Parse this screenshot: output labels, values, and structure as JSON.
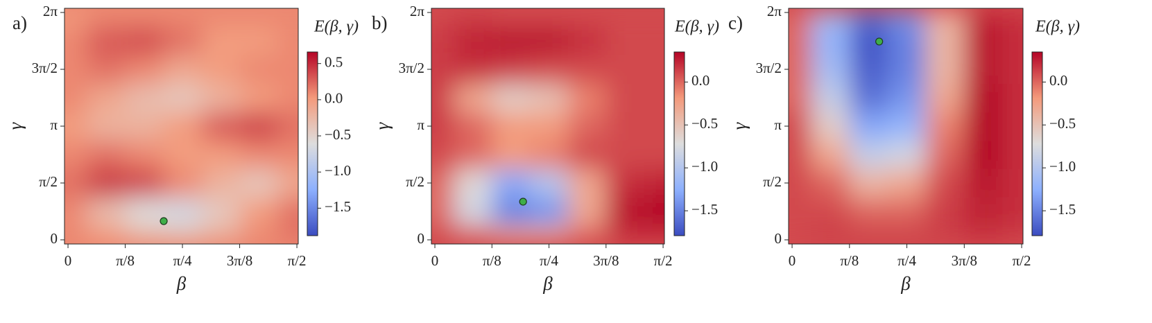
{
  "chart_data": [
    {
      "type": "heatmap",
      "panel_label": "a)",
      "xlabel": "β",
      "ylabel": "γ",
      "colorbar_label": "E(β, γ)",
      "xlim": [
        -0.024,
        1.58
      ],
      "ylim": [
        -0.115,
        6.398
      ],
      "xticks": [
        0,
        {
          "value": 0.3927,
          "label": "π/8"
        },
        {
          "value": 0.7854,
          "label": "π/4"
        },
        {
          "value": 1.1781,
          "label": "3π/8"
        },
        {
          "value": 1.5708,
          "label": "π/2"
        }
      ],
      "yticks": [
        0,
        {
          "value": 1.5708,
          "label": "π/2"
        },
        {
          "value": 3.1416,
          "label": "π"
        },
        {
          "value": 4.7124,
          "label": "3π/2"
        },
        {
          "value": 6.2832,
          "label": "2π"
        }
      ],
      "x": [
        0,
        0.262,
        0.524,
        0.785,
        1.047,
        1.309,
        1.571
      ],
      "y": [
        0,
        0.785,
        1.571,
        2.356,
        3.142,
        3.927,
        4.712,
        5.498,
        6.283
      ],
      "z": [
        [
          0.1,
          0.0,
          -0.3,
          -0.4,
          -0.2,
          0.1,
          0.2
        ],
        [
          0.1,
          -0.3,
          -0.6,
          -0.7,
          -0.4,
          0.0,
          0.2
        ],
        [
          0.2,
          0.45,
          0.4,
          0.1,
          -0.2,
          -0.4,
          -0.1
        ],
        [
          0.1,
          0.2,
          0.1,
          0.0,
          0.0,
          0.1,
          0.1
        ],
        [
          0.0,
          -0.2,
          -0.2,
          0.0,
          0.3,
          0.4,
          0.2
        ],
        [
          0.1,
          -0.1,
          -0.3,
          -0.4,
          -0.2,
          0.0,
          0.1
        ],
        [
          0.1,
          0.2,
          0.1,
          -0.1,
          0.0,
          0.1,
          0.1
        ],
        [
          0.1,
          0.3,
          0.35,
          0.2,
          0.0,
          0.0,
          0.1
        ],
        [
          0.0,
          0.1,
          0.1,
          0.1,
          0.1,
          0.1,
          0.1
        ]
      ],
      "vlim": [
        -1.88,
        0.66
      ],
      "cticks": [
        0.5,
        {
          "value": 0,
          "label": "0.0"
        },
        {
          "value": -0.5,
          "label": "−0.5"
        },
        {
          "value": -1,
          "label": "−1.0"
        },
        {
          "value": -1.5,
          "label": "−1.5"
        }
      ],
      "optimum": {
        "x": 0.657,
        "y": 0.517,
        "color": "#3fae49"
      }
    },
    {
      "type": "heatmap",
      "panel_label": "b)",
      "xlabel": "β",
      "ylabel": "γ",
      "colorbar_label": "E(β, γ)",
      "xlim": [
        -0.024,
        1.58
      ],
      "ylim": [
        -0.115,
        6.398
      ],
      "xticks": [
        0,
        {
          "value": 0.3927,
          "label": "π/8"
        },
        {
          "value": 0.7854,
          "label": "π/4"
        },
        {
          "value": 1.1781,
          "label": "3π/8"
        },
        {
          "value": 1.5708,
          "label": "π/2"
        }
      ],
      "yticks": [
        0,
        {
          "value": 1.5708,
          "label": "π/2"
        },
        {
          "value": 3.1416,
          "label": "π"
        },
        {
          "value": 4.7124,
          "label": "3π/2"
        },
        {
          "value": 6.2832,
          "label": "2π"
        }
      ],
      "x": [
        0,
        0.262,
        0.524,
        0.785,
        1.047,
        1.309,
        1.571
      ],
      "y": [
        0,
        0.785,
        1.571,
        2.356,
        3.142,
        3.927,
        4.712,
        5.498,
        6.283
      ],
      "z": [
        [
          0.1,
          0.0,
          -0.3,
          -0.3,
          0.0,
          0.2,
          0.2
        ],
        [
          0.0,
          -0.8,
          -1.5,
          -1.4,
          -0.3,
          0.3,
          0.35
        ],
        [
          0.0,
          -0.7,
          -1.3,
          -1.0,
          -0.3,
          0.2,
          0.25
        ],
        [
          0.1,
          0.0,
          -0.2,
          -0.1,
          0.1,
          0.1,
          0.1
        ],
        [
          0.15,
          0.0,
          -0.2,
          -0.2,
          0.0,
          0.1,
          0.1
        ],
        [
          0.15,
          -0.3,
          -0.6,
          -0.5,
          -0.1,
          0.1,
          0.1
        ],
        [
          0.15,
          0.2,
          0.15,
          0.1,
          0.1,
          0.1,
          0.1
        ],
        [
          0.15,
          0.25,
          0.3,
          0.3,
          0.2,
          0.1,
          0.1
        ],
        [
          0.1,
          0.15,
          0.1,
          0.1,
          0.1,
          0.1,
          0.1
        ]
      ],
      "vlim": [
        -1.79,
        0.35
      ],
      "cticks": [
        {
          "value": 0,
          "label": "0.0"
        },
        {
          "value": -0.5,
          "label": "−0.5"
        },
        {
          "value": -1,
          "label": "−1.0"
        },
        {
          "value": -1.5,
          "label": "−1.5"
        }
      ],
      "optimum": {
        "x": 0.607,
        "y": 1.054,
        "color": "#3fae49"
      }
    },
    {
      "type": "heatmap",
      "panel_label": "c)",
      "xlabel": "β",
      "ylabel": "γ",
      "colorbar_label": "E(β, γ)",
      "xlim": [
        -0.024,
        1.58
      ],
      "ylim": [
        -0.115,
        6.398
      ],
      "xticks": [
        0,
        {
          "value": 0.3927,
          "label": "π/8"
        },
        {
          "value": 0.7854,
          "label": "π/4"
        },
        {
          "value": 1.1781,
          "label": "3π/8"
        },
        {
          "value": 1.5708,
          "label": "π/2"
        }
      ],
      "yticks": [
        0,
        {
          "value": 1.5708,
          "label": "π/2"
        },
        {
          "value": 3.1416,
          "label": "π"
        },
        {
          "value": 4.7124,
          "label": "3π/2"
        },
        {
          "value": 6.2832,
          "label": "2π"
        }
      ],
      "x": [
        0,
        0.262,
        0.524,
        0.785,
        1.047,
        1.309,
        1.571
      ],
      "y": [
        0,
        0.785,
        1.571,
        2.356,
        3.142,
        3.927,
        4.712,
        5.498,
        6.283
      ],
      "z": [
        [
          0.1,
          0.15,
          0.15,
          0.15,
          0.15,
          0.2,
          0.15
        ],
        [
          0.1,
          0.1,
          0.0,
          0.0,
          0.15,
          0.25,
          0.2
        ],
        [
          0.1,
          0.0,
          -0.4,
          -0.3,
          0.1,
          0.3,
          0.2
        ],
        [
          0.1,
          -0.3,
          -0.9,
          -0.8,
          0.0,
          0.35,
          0.2
        ],
        [
          0.1,
          -0.6,
          -1.3,
          -1.2,
          -0.1,
          0.38,
          0.2
        ],
        [
          0.0,
          -0.9,
          -1.6,
          -1.4,
          -0.3,
          0.35,
          0.2
        ],
        [
          0.0,
          -1.1,
          -1.7,
          -1.5,
          -0.4,
          0.3,
          0.2
        ],
        [
          0.0,
          -1.2,
          -1.75,
          -1.5,
          -0.4,
          0.3,
          0.2
        ],
        [
          0.0,
          -1.1,
          -1.6,
          -1.4,
          -0.4,
          0.25,
          0.2
        ]
      ],
      "vlim": [
        -1.79,
        0.35
      ],
      "cticks": [
        {
          "value": 0,
          "label": "0.0"
        },
        {
          "value": -0.5,
          "label": "−0.5"
        },
        {
          "value": -1,
          "label": "−1.0"
        },
        {
          "value": -1.5,
          "label": "−1.5"
        }
      ],
      "optimum": {
        "x": 0.596,
        "y": 5.48,
        "color": "#3fae49"
      }
    }
  ]
}
